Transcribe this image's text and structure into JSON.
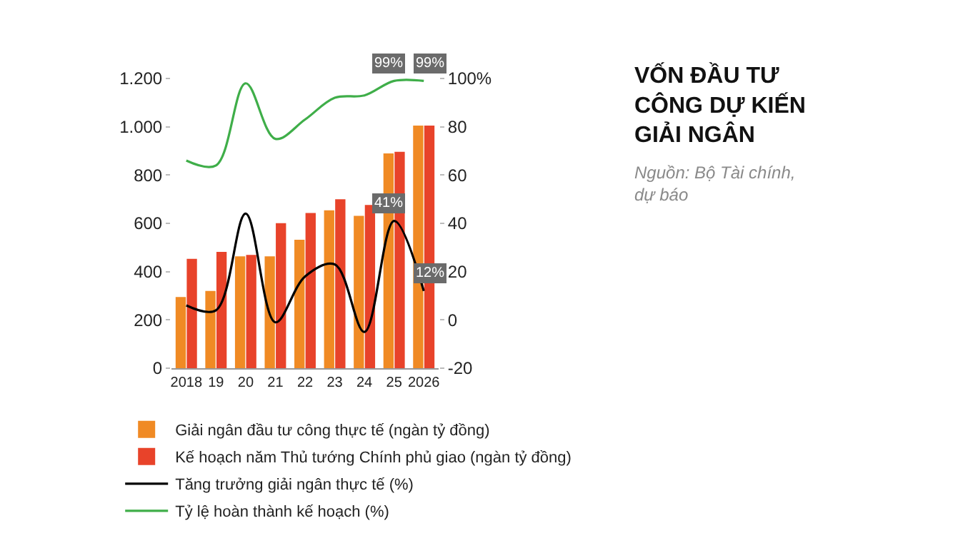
{
  "chart_data": {
    "type": "bar",
    "title": "VỐN ĐẦU TƯ CÔNG DỰ KIẾN GIẢI NGÂN",
    "annotations": [
      "Nguồn: Bộ Tài chính, dự báo"
    ],
    "categories": [
      "2018",
      "19",
      "20",
      "21",
      "22",
      "23",
      "24",
      "25",
      "2026"
    ],
    "series": [
      {
        "name": "Giải ngân đầu tư công thực tế (ngàn tỷ đồng)",
        "color": "#f08a24",
        "values": [
          295,
          320,
          463,
          463,
          532,
          654,
          631,
          890,
          1005
        ]
      },
      {
        "name": "Kế hoạch năm Thủ tướng Chính phủ giao (ngàn tỷ đồng)",
        "color": "#e8432a",
        "values": [
          453,
          482,
          469,
          601,
          643,
          700,
          676,
          896,
          1005
        ]
      },
      {
        "name": "Tăng trưởng giải ngân thực tế (%)",
        "type": "line",
        "axis": "y2",
        "color": "#000000",
        "values": [
          6,
          4,
          44,
          -1,
          18,
          23,
          -5,
          41,
          12
        ],
        "value_labels": [
          null,
          null,
          null,
          null,
          null,
          null,
          null,
          "41%",
          "12%"
        ]
      },
      {
        "name": "Tỷ lệ hoàn thành kế hoạch (%)",
        "type": "line",
        "axis": "y2",
        "color": "#3fae49",
        "values": [
          66,
          64,
          98,
          75,
          83,
          92,
          93,
          99,
          99
        ],
        "value_labels": [
          null,
          null,
          null,
          null,
          null,
          null,
          null,
          "99%",
          "99%"
        ]
      }
    ],
    "ylim": [
      0,
      1200
    ],
    "yticks": [
      0,
      200,
      400,
      600,
      800,
      {
        "value": 1000,
        "label": "1.000"
      },
      {
        "value": 1200,
        "label": "1.200"
      }
    ],
    "y2lim": [
      -20,
      100
    ],
    "y2ticks": [
      -20,
      0,
      20,
      40,
      60,
      80,
      {
        "value": 100,
        "label": "100%"
      }
    ],
    "grid": false,
    "legend": "bottom",
    "marker": "none",
    "line_style": "solid"
  }
}
